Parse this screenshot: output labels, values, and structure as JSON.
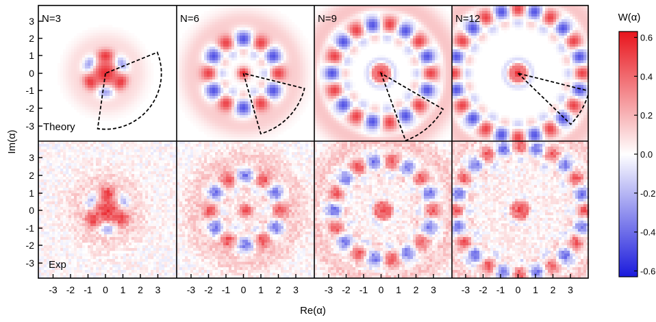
{
  "chart_data": {
    "type": "heatmap",
    "title": "",
    "xlabel": "Re(α)",
    "ylabel": "Im(α)",
    "xlim": [
      -3.9,
      3.9
    ],
    "ylim": [
      -3.9,
      3.9
    ],
    "xticks": [
      "-3",
      "-2",
      "-1",
      "0",
      "1",
      "2",
      "3"
    ],
    "xtick_values": [
      -3,
      -2,
      -1,
      0,
      1,
      2,
      3
    ],
    "yticks": [
      "3",
      "2",
      "1",
      "0",
      "-1",
      "-2",
      "-3"
    ],
    "ytick_values": [
      3,
      2,
      1,
      0,
      -1,
      -2,
      -3
    ],
    "grid": false,
    "columns": [
      {
        "label": "N=3",
        "N": 3,
        "wedge_angle_deg": 120,
        "wedge_radius": 3.2,
        "wedge_rotation_deg": -38
      },
      {
        "label": "N=6",
        "N": 6,
        "wedge_angle_deg": 60,
        "wedge_radius": 3.6,
        "wedge_rotation_deg": -44
      },
      {
        "label": "N=9",
        "N": 9,
        "wedge_angle_deg": 40,
        "wedge_radius": 4.1,
        "wedge_rotation_deg": -50
      },
      {
        "label": "N=12",
        "N": 12,
        "wedge_angle_deg": 30,
        "wedge_radius": 4.2,
        "wedge_rotation_deg": -29
      }
    ],
    "rows": [
      {
        "label": "Theory"
      },
      {
        "label": "Exp"
      }
    ],
    "colorbar": {
      "label": "W(α)",
      "min": -0.63,
      "max": 0.63,
      "ticks": [
        "0.6",
        "0.4",
        "0.2",
        "0.0",
        "-0.2",
        "-0.4",
        "-0.6"
      ],
      "tick_values": [
        0.6,
        0.4,
        0.2,
        0.0,
        -0.2,
        -0.4,
        -0.6
      ],
      "colors": {
        "positive": "#e8141c",
        "zero": "#ffffff",
        "negative": "#1a1adc"
      }
    }
  }
}
